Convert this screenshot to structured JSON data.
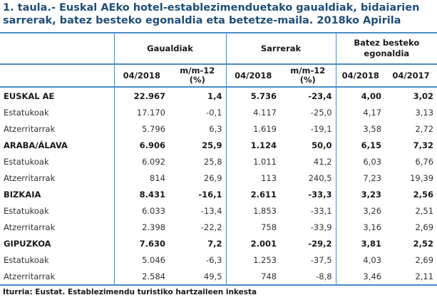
{
  "title": "1. taula.- Euskal AEko hotel-establezimenduetako gaualdiak, bidaiarien sarrerak, batez besteko egonaldia eta betetze-maila. 2018ko Apirila",
  "header": {
    "groups": [
      "Gaualdiak",
      "Sarrerak",
      "Batez besteko egonaldia"
    ],
    "columns": [
      "04/2018",
      "m/m-12 (%)",
      "04/2018",
      "m/m-12 (%)",
      "04/2018",
      "04/2017"
    ]
  },
  "regions": [
    {
      "name": "EUSKAL AE",
      "values": [
        "22.967",
        "1,4",
        "5.736",
        "-23,4",
        "4,00",
        "3,02"
      ],
      "rows": [
        {
          "label": "Estatukoak",
          "values": [
            "17.170",
            "-0,1",
            "4.117",
            "-25,0",
            "4,17",
            "3,13"
          ]
        },
        {
          "label": "Atzerritarrak",
          "values": [
            "5.796",
            "6,3",
            "1.619",
            "-19,1",
            "3,58",
            "2,72"
          ]
        }
      ]
    },
    {
      "name": "ARABA/ÁLAVA",
      "values": [
        "6.906",
        "25,9",
        "1.124",
        "50,0",
        "6,15",
        "7,32"
      ],
      "rows": [
        {
          "label": "Estatukoak",
          "values": [
            "6.092",
            "25,8",
            "1.011",
            "41,2",
            "6,03",
            "6,76"
          ]
        },
        {
          "label": "Atzerritarrak",
          "values": [
            "814",
            "26,9",
            "113",
            "240,5",
            "7,23",
            "19,39"
          ]
        }
      ]
    },
    {
      "name": "BIZKAIA",
      "values": [
        "8.431",
        "-16,1",
        "2.611",
        "-33,3",
        "3,23",
        "2,56"
      ],
      "rows": [
        {
          "label": "Estatukoak",
          "values": [
            "6.033",
            "-13,4",
            "1.853",
            "-33,1",
            "3,26",
            "2,51"
          ]
        },
        {
          "label": "Atzerritarrak",
          "values": [
            "2.398",
            "-22,2",
            "758",
            "-33,9",
            "3,16",
            "2,69"
          ]
        }
      ]
    },
    {
      "name": "GIPUZKOA",
      "values": [
        "7.630",
        "7,2",
        "2.001",
        "-29,2",
        "3,81",
        "2,52"
      ],
      "rows": [
        {
          "label": "Estatukoak",
          "values": [
            "5.046",
            "-6,3",
            "1.253",
            "-37,5",
            "4,03",
            "2,69"
          ]
        },
        {
          "label": "Atzerritarrak",
          "values": [
            "2.584",
            "49,5",
            "748",
            "-8,8",
            "3,46",
            "2,11"
          ]
        }
      ]
    }
  ],
  "source": "Iturria: Eustat. Establezimendu turistiko hartzaileen inkesta",
  "colors": {
    "title": "#1f4e79",
    "rule": "#4a8bc7"
  }
}
